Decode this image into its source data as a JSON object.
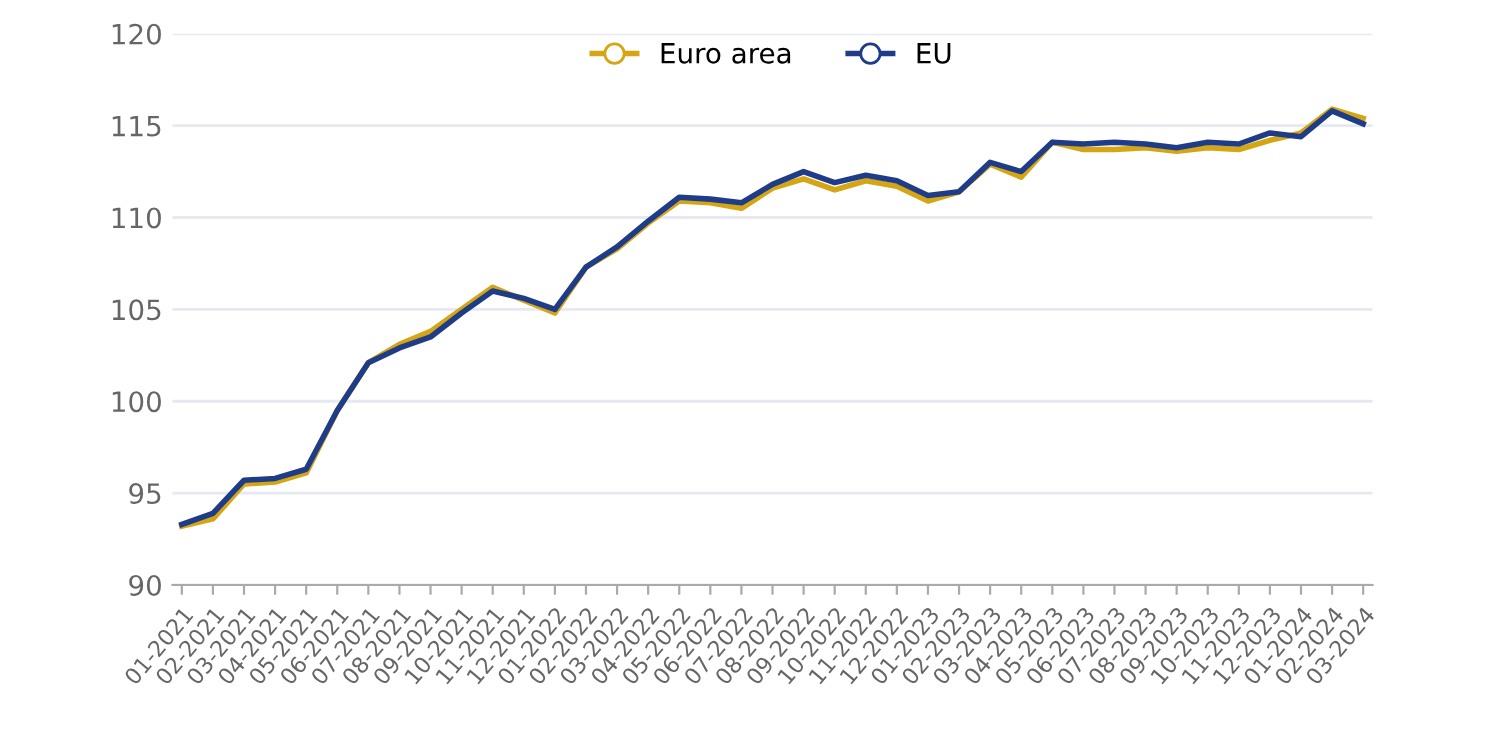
{
  "chart_data": {
    "type": "line",
    "categories": [
      "01-2021",
      "02-2021",
      "03-2021",
      "04-2021",
      "05-2021",
      "06-2021",
      "07-2021",
      "08-2021",
      "09-2021",
      "10-2021",
      "11-2021",
      "12-2021",
      "01-2022",
      "02-2022",
      "03-2022",
      "04-2022",
      "05-2022",
      "06-2022",
      "07-2022",
      "08-2022",
      "09-2022",
      "10-2022",
      "11-2022",
      "12-2022",
      "01-2023",
      "02-2023",
      "03-2023",
      "04-2023",
      "05-2023",
      "06-2023",
      "07-2023",
      "08-2023",
      "09-2023",
      "10-2023",
      "11-2023",
      "12-2023",
      "01-2024",
      "02-2024",
      "03-2024"
    ],
    "series": [
      {
        "name": "Euro area",
        "color": "#d4a514",
        "values": [
          93.2,
          93.6,
          95.5,
          95.6,
          96.1,
          99.5,
          102.1,
          103.1,
          103.8,
          105.0,
          106.2,
          105.5,
          104.8,
          107.3,
          108.3,
          109.7,
          110.9,
          110.8,
          110.5,
          111.6,
          112.1,
          111.5,
          112.0,
          111.7,
          110.9,
          111.4,
          112.9,
          112.2,
          114.1,
          113.7,
          113.7,
          113.8,
          113.6,
          113.8,
          113.7,
          114.2,
          114.6,
          115.9,
          115.4
        ]
      },
      {
        "name": "EU",
        "color": "#1f3c88",
        "values": [
          93.3,
          93.9,
          95.7,
          95.8,
          96.3,
          99.5,
          102.1,
          102.9,
          103.5,
          104.8,
          106.0,
          105.6,
          105.0,
          107.3,
          108.4,
          109.8,
          111.1,
          111.0,
          110.8,
          111.8,
          112.5,
          111.9,
          112.3,
          112.0,
          111.2,
          111.4,
          113.0,
          112.5,
          114.1,
          114.0,
          114.1,
          114.0,
          113.8,
          114.1,
          114.0,
          114.6,
          114.4,
          115.8,
          115.1
        ]
      }
    ],
    "ylim": [
      90,
      120
    ],
    "yticks": [
      90,
      95,
      100,
      105,
      110,
      115,
      120
    ],
    "grid": "y",
    "legend": "top"
  }
}
